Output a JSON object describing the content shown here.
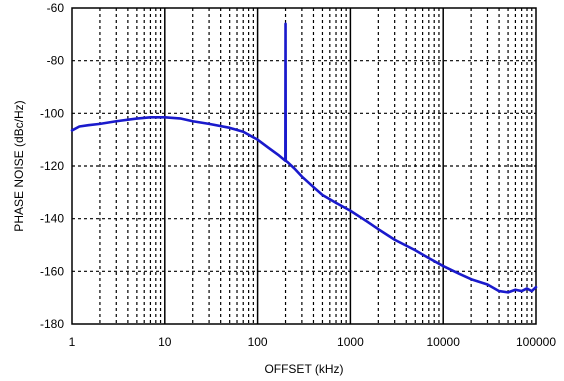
{
  "chart_data": {
    "type": "line",
    "xlabel": "OFFSET (kHz)",
    "ylabel": "PHASE NOISE (dBc/Hz)",
    "xscale": "log",
    "xlim": [
      1,
      100000
    ],
    "ylim": [
      -180,
      -60
    ],
    "x_ticks": [
      1,
      10,
      100,
      1000,
      10000,
      100000
    ],
    "x_tick_labels": [
      "1",
      "10",
      "100",
      "1000",
      "10000",
      "100000"
    ],
    "y_ticks": [
      -180,
      -160,
      -140,
      -120,
      -100,
      -80,
      -60
    ],
    "y_tick_labels": [
      "-180",
      "-160",
      "-140",
      "-120",
      "-100",
      "-80",
      "-60"
    ],
    "grid": "dashed",
    "line_color": "#1a1acc",
    "series": [
      {
        "x": [
          1,
          1.2,
          1.5,
          2,
          3,
          5,
          7,
          10,
          15,
          20,
          30,
          50,
          70,
          100,
          130,
          170,
          199,
          200,
          201,
          210,
          250,
          300,
          400,
          500,
          700,
          1000,
          1500,
          2000,
          3000,
          5000,
          7000,
          10000,
          15000,
          20000,
          30000,
          40000,
          50000,
          60000,
          70000,
          80000,
          90000,
          100000
        ],
        "y": [
          -106.5,
          -105,
          -104.5,
          -104,
          -103,
          -102,
          -101.5,
          -101.5,
          -102,
          -103,
          -104,
          -105.5,
          -107,
          -110,
          -113,
          -116,
          -118,
          -66,
          -118,
          -118.5,
          -121,
          -124,
          -128,
          -131,
          -134,
          -137,
          -141,
          -144,
          -148,
          -152,
          -155,
          -158,
          -161,
          -163,
          -165,
          -167.5,
          -168,
          -167,
          -167.5,
          -166.5,
          -167.5,
          -166
        ]
      }
    ]
  }
}
